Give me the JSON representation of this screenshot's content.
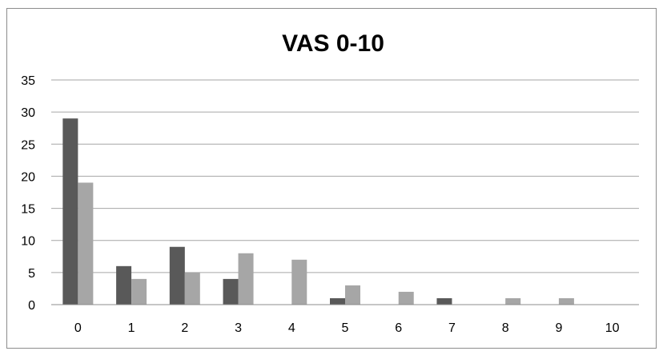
{
  "chart_data": {
    "type": "bar",
    "title": "VAS 0-10",
    "xlabel": "",
    "ylabel": "",
    "categories": [
      "0",
      "1",
      "2",
      "3",
      "4",
      "5",
      "6",
      "7",
      "8",
      "9",
      "10"
    ],
    "series": [
      {
        "values": [
          29,
          6,
          9,
          4,
          0,
          1,
          0,
          1,
          0,
          0,
          0
        ],
        "color": "#595959"
      },
      {
        "values": [
          19,
          4,
          5,
          8,
          7,
          3,
          2,
          0,
          1,
          1,
          0
        ],
        "color": "#a6a6a6"
      }
    ],
    "ylim": [
      0,
      35
    ],
    "yticks": [
      "0",
      "5",
      "10",
      "15",
      "20",
      "25",
      "30",
      "35"
    ],
    "grid": true,
    "legend": "none"
  }
}
